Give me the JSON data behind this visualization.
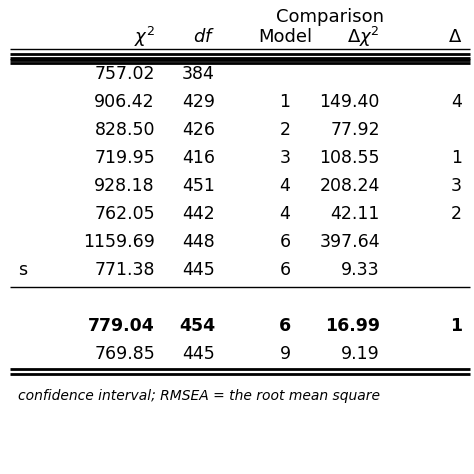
{
  "rows": [
    {
      "chi2": "757.02",
      "df": "384",
      "model": "",
      "delta_chi2": "",
      "delta": "",
      "bold": false,
      "prefix": ""
    },
    {
      "chi2": "906.42",
      "df": "429",
      "model": "1",
      "delta_chi2": "149.40",
      "delta": "4",
      "bold": false,
      "prefix": ""
    },
    {
      "chi2": "828.50",
      "df": "426",
      "model": "2",
      "delta_chi2": "77.92",
      "delta": "",
      "bold": false,
      "prefix": ""
    },
    {
      "chi2": "719.95",
      "df": "416",
      "model": "3",
      "delta_chi2": "108.55",
      "delta": "1",
      "bold": false,
      "prefix": ""
    },
    {
      "chi2": "928.18",
      "df": "451",
      "model": "4",
      "delta_chi2": "208.24",
      "delta": "3",
      "bold": false,
      "prefix": ""
    },
    {
      "chi2": "762.05",
      "df": "442",
      "model": "4",
      "delta_chi2": "42.11",
      "delta": "2",
      "bold": false,
      "prefix": ""
    },
    {
      "chi2": "1159.69",
      "df": "448",
      "model": "6",
      "delta_chi2": "397.64",
      "delta": "",
      "bold": false,
      "prefix": ""
    },
    {
      "chi2": "771.38",
      "df": "445",
      "model": "6",
      "delta_chi2": "9.33",
      "delta": "",
      "bold": false,
      "prefix": "s"
    },
    {
      "chi2": "",
      "df": "",
      "model": "",
      "delta_chi2": "",
      "delta": "",
      "bold": false,
      "prefix": ""
    },
    {
      "chi2": "779.04",
      "df": "454",
      "model": "6",
      "delta_chi2": "16.99",
      "delta": "1",
      "bold": true,
      "prefix": ""
    },
    {
      "chi2": "769.85",
      "df": "445",
      "model": "9",
      "delta_chi2": "9.19",
      "delta": "",
      "bold": false,
      "prefix": ""
    }
  ],
  "footer": "confidence interval; RMSEA = the root mean square",
  "bg_color": "#ffffff",
  "text_color": "#000000",
  "font_size": 12.5,
  "header_font_size": 13
}
